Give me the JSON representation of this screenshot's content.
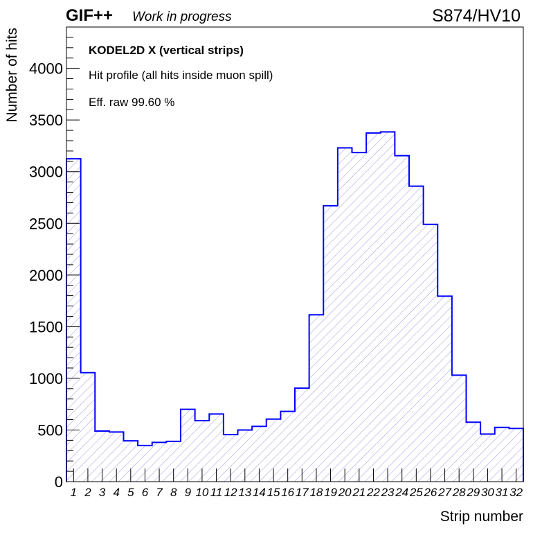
{
  "header": {
    "logo": "GIF++",
    "status": "Work in progress",
    "run_label": "S874/HV10"
  },
  "annotations": {
    "detector": "KODEL2D X (vertical strips)",
    "description": "Hit profile (all hits inside muon spill)",
    "efficiency": "Eff. raw 99.60 %"
  },
  "chart_data": {
    "type": "bar",
    "style": "step histogram with diagonal hatch fill",
    "xlabel": "Strip number",
    "ylabel": "Number of hits",
    "ylim": [
      0,
      4400
    ],
    "y_ticks": [
      0,
      500,
      1000,
      1500,
      2000,
      2500,
      3000,
      3500,
      4000
    ],
    "categories": [
      "1",
      "2",
      "3",
      "4",
      "5",
      "6",
      "7",
      "8",
      "9",
      "10",
      "11",
      "12",
      "13",
      "14",
      "15",
      "16",
      "17",
      "18",
      "19",
      "20",
      "21",
      "22",
      "23",
      "24",
      "25",
      "26",
      "27",
      "28",
      "29",
      "30",
      "31",
      "32"
    ],
    "values": [
      3125,
      1055,
      490,
      480,
      395,
      350,
      380,
      390,
      700,
      590,
      655,
      455,
      500,
      535,
      605,
      680,
      905,
      1615,
      2670,
      3230,
      3185,
      3375,
      3385,
      3155,
      2860,
      2490,
      1795,
      1030,
      575,
      460,
      525,
      515
    ],
    "colors": {
      "line": "#0000ff",
      "hatch": "#9a9ae6",
      "axis": "#000000"
    },
    "grid": false
  }
}
